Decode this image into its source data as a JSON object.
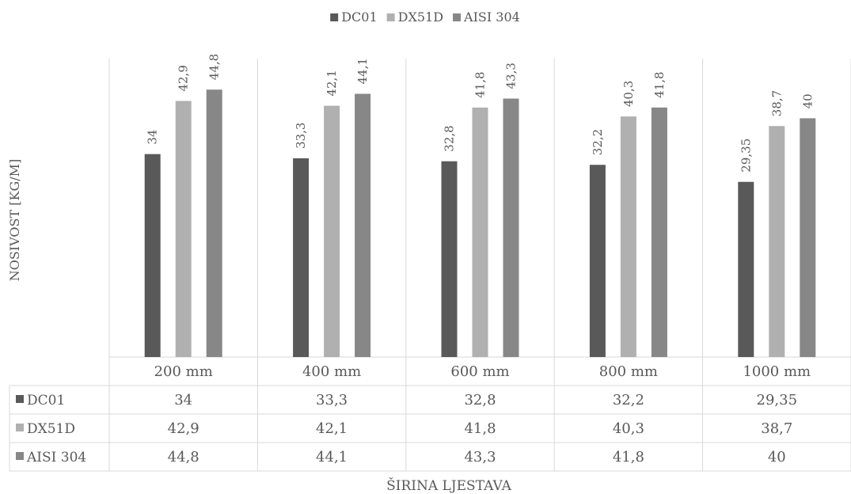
{
  "chart_data": {
    "type": "bar",
    "title": "",
    "xlabel": "ŠIRINA LJESTAVA",
    "ylabel": "NOSIVOST [KG/M]",
    "categories": [
      "200 mm",
      "400 mm",
      "600 mm",
      "800 mm",
      "1000 mm"
    ],
    "series": [
      {
        "name": "DC01",
        "values": [
          34,
          33.3,
          32.8,
          32.2,
          29.35
        ],
        "labels": [
          "34",
          "33,3",
          "32,8",
          "32,2",
          "29,35"
        ],
        "color": "#595959"
      },
      {
        "name": "DX51D",
        "values": [
          42.9,
          42.1,
          41.8,
          40.3,
          38.7
        ],
        "labels": [
          "42,9",
          "42,1",
          "41,8",
          "40,3",
          "38,7"
        ],
        "color": "#b0b0b0"
      },
      {
        "name": "AISI 304",
        "values": [
          44.8,
          44.1,
          43.3,
          41.8,
          40
        ],
        "labels": [
          "44,8",
          "44,1",
          "43,3",
          "41,8",
          "40"
        ],
        "color": "#878787"
      }
    ],
    "ylim": [
      0,
      50
    ],
    "grid": false,
    "legend_position": "top",
    "data_table": true
  }
}
